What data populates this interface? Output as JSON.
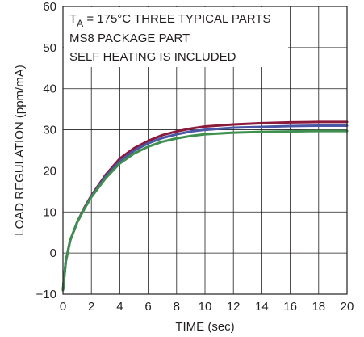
{
  "chart_data": {
    "type": "line",
    "xlabel": "TIME (sec)",
    "ylabel": "LOAD REGULATION (ppm/mA)",
    "xlim": [
      0,
      20
    ],
    "ylim": [
      -10,
      60
    ],
    "x_ticks": [
      0,
      2,
      4,
      6,
      8,
      10,
      12,
      14,
      16,
      18,
      20
    ],
    "y_ticks": [
      -10,
      0,
      10,
      20,
      30,
      40,
      50,
      60
    ],
    "x_tick_labels": [
      "0",
      "2",
      "4",
      "6",
      "8",
      "10",
      "12",
      "14",
      "16",
      "18",
      "20"
    ],
    "y_tick_labels": [
      "−10",
      "0",
      "10",
      "20",
      "30",
      "40",
      "50",
      "60"
    ],
    "grid": true,
    "annotation": {
      "line1_prefix": "T",
      "line1_subscript": "A",
      "line1_suffix": " = 175°C THREE TYPICAL PARTS",
      "line2": "MS8 PACKAGE PART",
      "line3": "SELF HEATING IS INCLUDED"
    },
    "series": [
      {
        "color": "#8b1a3c",
        "x": [
          0,
          0.2,
          0.5,
          1,
          1.5,
          2,
          3,
          4,
          5,
          6,
          7,
          8,
          9,
          10,
          12,
          14,
          16,
          18,
          20
        ],
        "y": [
          -9,
          -2,
          3,
          7.5,
          11,
          14,
          19,
          23,
          25.5,
          27.3,
          28.7,
          29.6,
          30.3,
          30.8,
          31.3,
          31.6,
          31.8,
          31.9,
          31.9
        ]
      },
      {
        "color": "#4a57a6",
        "x": [
          0,
          0.2,
          0.5,
          1,
          1.5,
          2,
          3,
          4,
          5,
          6,
          7,
          8,
          9,
          10,
          12,
          14,
          16,
          18,
          20
        ],
        "y": [
          -9,
          -2,
          3,
          7.5,
          10.8,
          13.8,
          18.6,
          22.3,
          24.9,
          26.7,
          28,
          28.9,
          29.6,
          30,
          30.5,
          30.7,
          30.9,
          31,
          31
        ]
      },
      {
        "color": "#3f8f4f",
        "x": [
          0,
          0.2,
          0.5,
          1,
          1.5,
          2,
          3,
          4,
          5,
          6,
          7,
          8,
          9,
          10,
          12,
          14,
          16,
          18,
          20
        ],
        "y": [
          -9,
          -2,
          3,
          7.5,
          10.7,
          13.6,
          18.2,
          21.8,
          24.2,
          25.9,
          27.1,
          27.9,
          28.5,
          28.9,
          29.3,
          29.5,
          29.6,
          29.7,
          29.7
        ]
      }
    ]
  }
}
